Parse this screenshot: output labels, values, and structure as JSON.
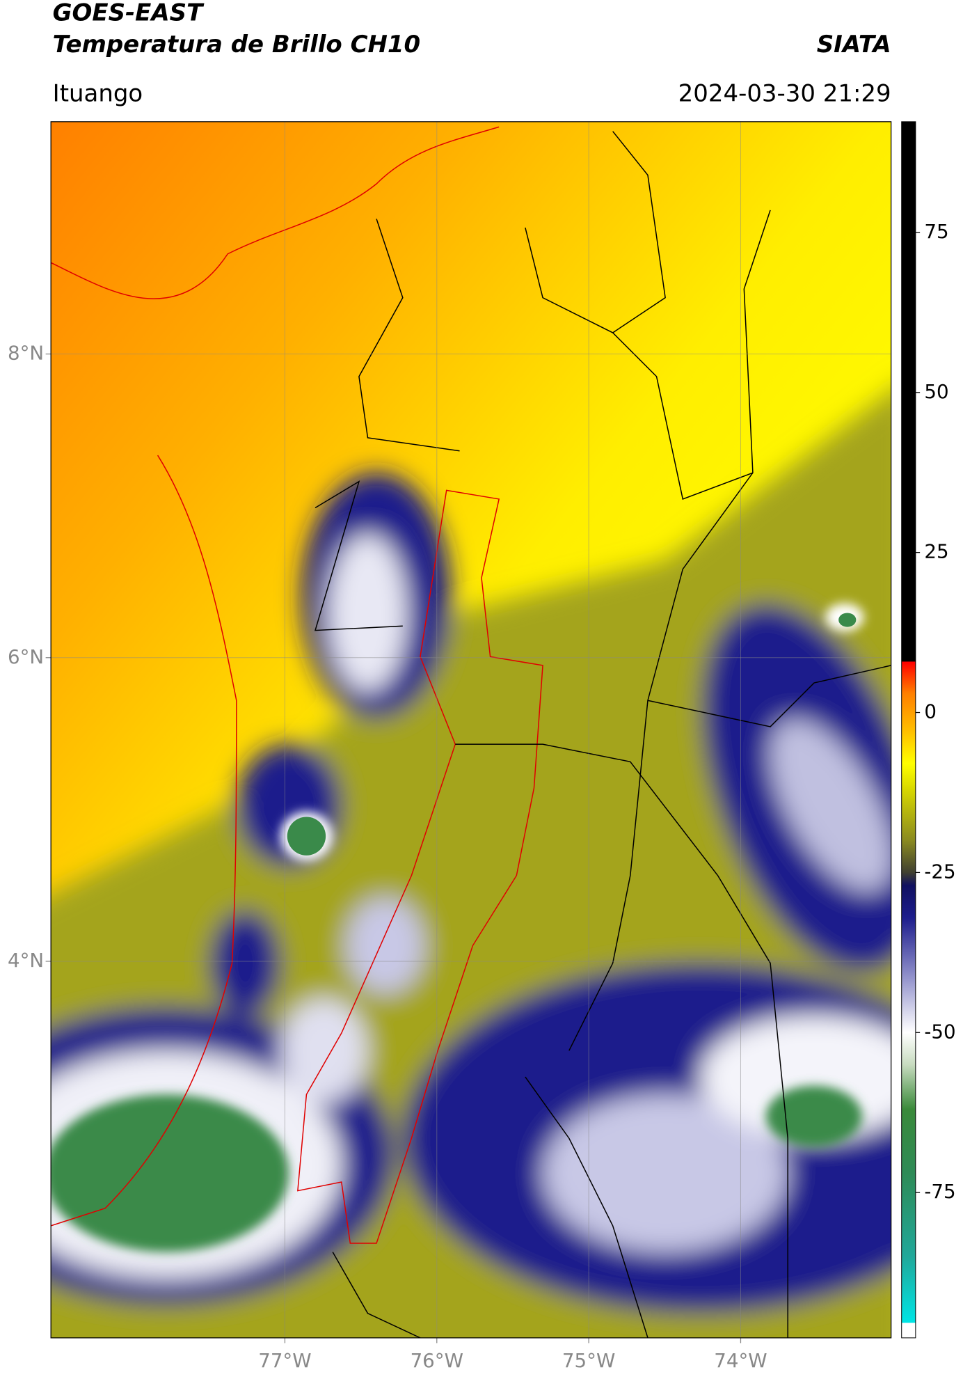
{
  "header": {
    "title": "GOES-EAST",
    "subtitle": "Temperatura de Brillo CH10",
    "source": "SIATA",
    "location": "Ituango",
    "timestamp": "2024-03-30 21:29"
  },
  "map": {
    "xlim": [
      -78.54,
      -73.01
    ],
    "ylim": [
      1.52,
      9.53
    ],
    "xticks": [
      {
        "value": -77,
        "label": "77°W"
      },
      {
        "value": -76,
        "label": "76°W"
      },
      {
        "value": -75,
        "label": "75°W"
      },
      {
        "value": -74,
        "label": "74°W"
      }
    ],
    "yticks": [
      {
        "value": 8,
        "label": "8°N"
      },
      {
        "value": 6,
        "label": "6°N"
      },
      {
        "value": 4,
        "label": "4°N"
      }
    ],
    "grid": true
  },
  "colorbar": {
    "lim": [
      -97.7,
      92.3
    ],
    "ticks": [
      75,
      50,
      25,
      0,
      -25,
      -50,
      -75
    ],
    "stops": [
      {
        "value": -97.7,
        "color": "#ffffff"
      },
      {
        "value": -95.4,
        "color": "#ffffff"
      },
      {
        "value": -95.3,
        "color": "#00e5e5"
      },
      {
        "value": -85,
        "color": "#20a89a"
      },
      {
        "value": -72,
        "color": "#2e8b57"
      },
      {
        "value": -62,
        "color": "#3a8a3a"
      },
      {
        "value": -55,
        "color": "#c8dcc0"
      },
      {
        "value": -50,
        "color": "#ffffff"
      },
      {
        "value": -42,
        "color": "#9a9ad0"
      },
      {
        "value": -32,
        "color": "#1c1c8c"
      },
      {
        "value": -27,
        "color": "#101060"
      },
      {
        "value": -25,
        "color": "#404030"
      },
      {
        "value": -20,
        "color": "#8a8a20"
      },
      {
        "value": -12,
        "color": "#d8d800"
      },
      {
        "value": -8,
        "color": "#ffff00"
      },
      {
        "value": -3,
        "color": "#ffc000"
      },
      {
        "value": 3,
        "color": "#ff7f00"
      },
      {
        "value": 7.9,
        "color": "#ff0000"
      },
      {
        "value": 8,
        "color": "#000000"
      },
      {
        "value": 92.3,
        "color": "#000000"
      }
    ]
  }
}
